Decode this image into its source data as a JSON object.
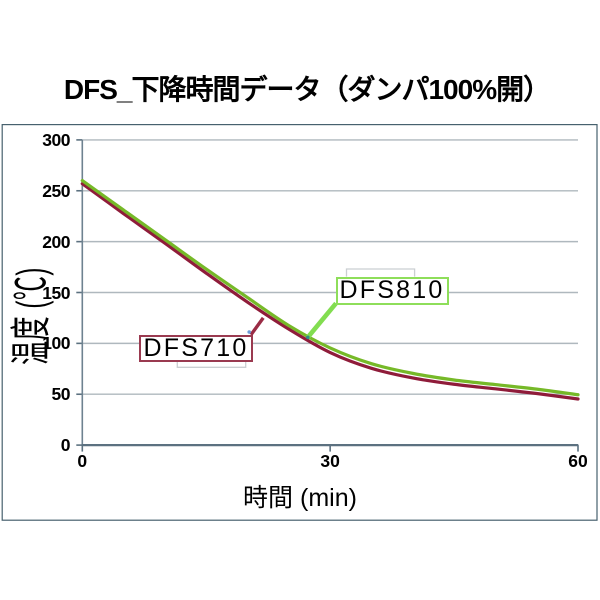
{
  "page": {
    "background": "#ffffff"
  },
  "chart_data": {
    "type": "line",
    "title": "DFS_下降時間データ（ダンパ100%開）",
    "xlabel": "時間 (min)",
    "ylabel": "温度 (℃)",
    "xlim": [
      0,
      60
    ],
    "ylim": [
      0,
      300
    ],
    "xtick_values": [
      0,
      30,
      60
    ],
    "xtick_labels": [
      "0",
      "30",
      "60"
    ],
    "ytick_values": [
      0,
      50,
      100,
      150,
      200,
      250,
      300
    ],
    "ytick_labels": [
      "0",
      "50",
      "100",
      "150",
      "200",
      "250",
      "300"
    ],
    "grid": "horizontal",
    "legend_position": "none",
    "x": [
      0,
      5,
      10,
      15,
      20,
      25,
      30,
      35,
      40,
      45,
      50,
      55,
      60
    ],
    "series": [
      {
        "name": "DFS710",
        "color": "#8f1c3a",
        "values": [
          257,
          227.5,
          198.5,
          169,
          140.5,
          114,
          91,
          75.5,
          66,
          59.8,
          55.3,
          50.7,
          45.3
        ]
      },
      {
        "name": "DFS810",
        "color": "#76b928",
        "values": [
          260,
          231,
          202,
          173,
          145,
          117.5,
          95.5,
          80,
          70.5,
          64,
          59.5,
          55,
          49.5
        ]
      }
    ],
    "annotations": [
      {
        "label": "DFS710",
        "box_border_color": "#9a3a50",
        "leader_color": "#9a2c45",
        "anchor_t": 21.9,
        "anchor_temp": 125
      },
      {
        "label": "DFS810",
        "box_border_color": "#8ede5a",
        "leader_color": "#82dd50",
        "anchor_t": 27.3,
        "anchor_temp": 106
      }
    ]
  },
  "colors": {
    "frame": "#47616e",
    "y_axis": "#6e8290",
    "x_axis": "#5c7180",
    "tick": "#5c7180",
    "gridline": "#afb8be",
    "bracket": "#cbcfd2",
    "text": "#000000",
    "anchor_dot_blue": "#6b9bd8",
    "anchor_dot_teal": "#2e8f85"
  }
}
